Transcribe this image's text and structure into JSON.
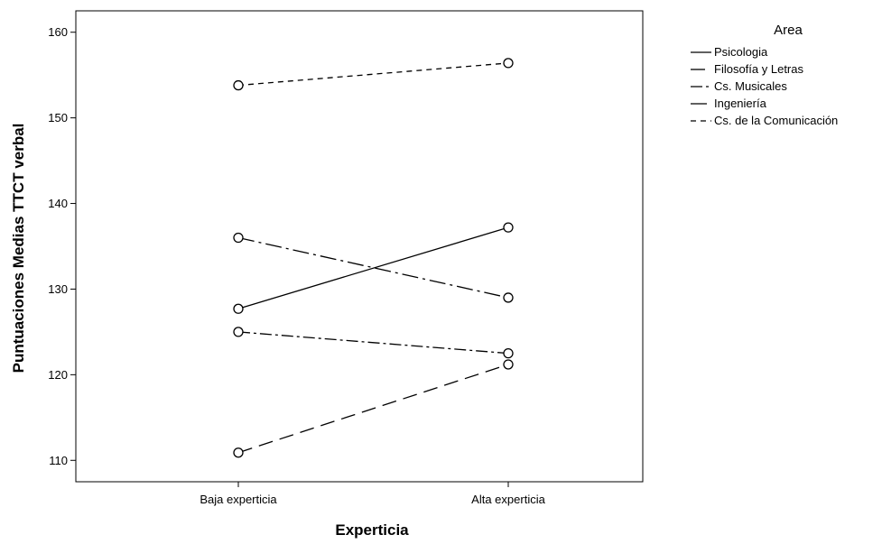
{
  "chart_data": {
    "type": "line",
    "title": "",
    "xlabel": "Experticia",
    "ylabel": "Puntuaciones Medias TTCT verbal",
    "categories": [
      "Baja experticia",
      "Alta experticia"
    ],
    "ylim": [
      107.5,
      162.5
    ],
    "yticks": [
      110,
      120,
      130,
      140,
      150,
      160
    ],
    "grid": false,
    "markers": "open-circle",
    "legend": {
      "title": "Area",
      "placement": "right"
    },
    "series": [
      {
        "name": "Psicologia",
        "values": [
          127.7,
          137.2
        ],
        "dash": "solid"
      },
      {
        "name": "Filosofía y Letras",
        "values": [
          110.9,
          121.2
        ],
        "dash": "long-dash"
      },
      {
        "name": "Cs. Musicales",
        "values": [
          125.0,
          122.5
        ],
        "dash": "dash-dot"
      },
      {
        "name": "Ingeniería",
        "values": [
          136.0,
          129.0
        ],
        "dash": "long-dash-dot"
      },
      {
        "name": "Cs. de la Comunicación",
        "values": [
          153.8,
          156.4
        ],
        "dash": "short-dash"
      }
    ]
  }
}
